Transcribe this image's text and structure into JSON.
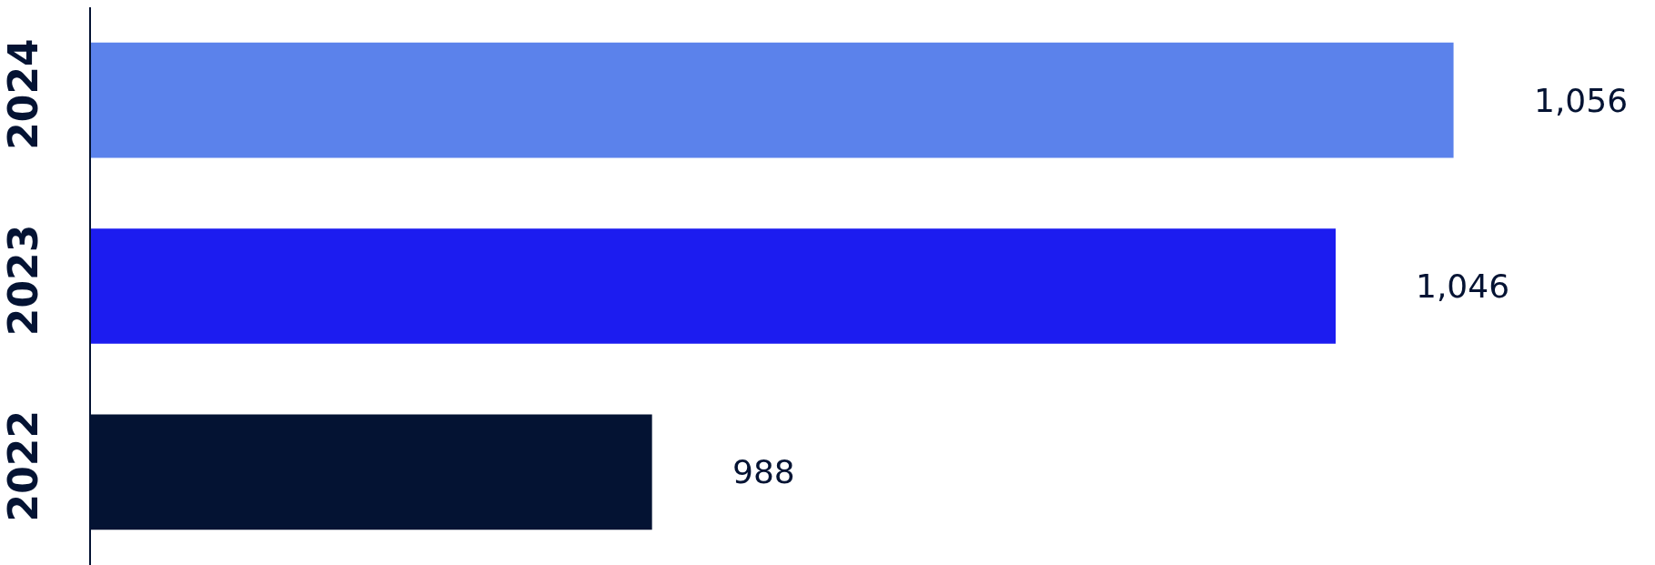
{
  "chart_data": {
    "type": "bar",
    "orientation": "horizontal",
    "categories": [
      "2024",
      "2023",
      "2022"
    ],
    "values": [
      1056,
      1046,
      988
    ],
    "colors": [
      "#5b82eb",
      "#1c1cf0",
      "#041333"
    ],
    "value_labels": [
      "1,056",
      "1,046",
      "988"
    ],
    "grid": false,
    "tick_labels": "y"
  }
}
